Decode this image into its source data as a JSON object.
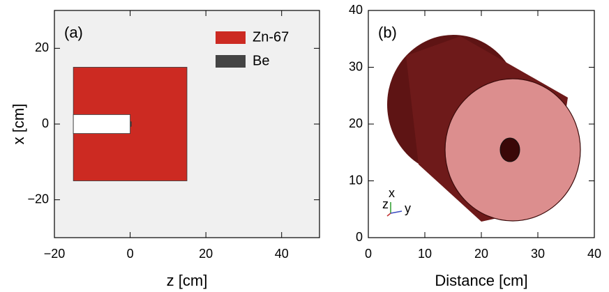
{
  "chart_data": [
    {
      "type": "geometry",
      "panel_label": "(a)",
      "xlabel": "z [cm]",
      "ylabel": "x [cm]",
      "xlim": [
        -20,
        50
      ],
      "ylim": [
        -30,
        30
      ],
      "xticks": [
        {
          "value": -20,
          "label": "−20"
        },
        0,
        20,
        40
      ],
      "yticks": [
        {
          "value": -20,
          "label": "−20"
        },
        0,
        20
      ],
      "background": "#f0f0f0",
      "series": [
        {
          "name": "Zn-67",
          "color": "#cc2a22",
          "rects": [
            [
              -15,
              15,
              -15,
              15
            ]
          ]
        },
        {
          "name": "Be",
          "color": "#444444",
          "rects": [
            [
              -0.3,
              0.3,
              -0.6,
              0.6
            ]
          ]
        }
      ],
      "voids": [
        [
          -15,
          0,
          -2.5,
          2.5
        ]
      ]
    },
    {
      "type": "render",
      "panel_label": "(b)",
      "xlabel": "Distance [cm]",
      "xlim": [
        0,
        40
      ],
      "ylim": [
        0,
        40
      ],
      "xticks": [
        0,
        10,
        20,
        30,
        40
      ],
      "yticks": [
        0,
        10,
        20,
        30,
        40
      ],
      "triad": [
        "z",
        "x",
        "y"
      ]
    }
  ]
}
